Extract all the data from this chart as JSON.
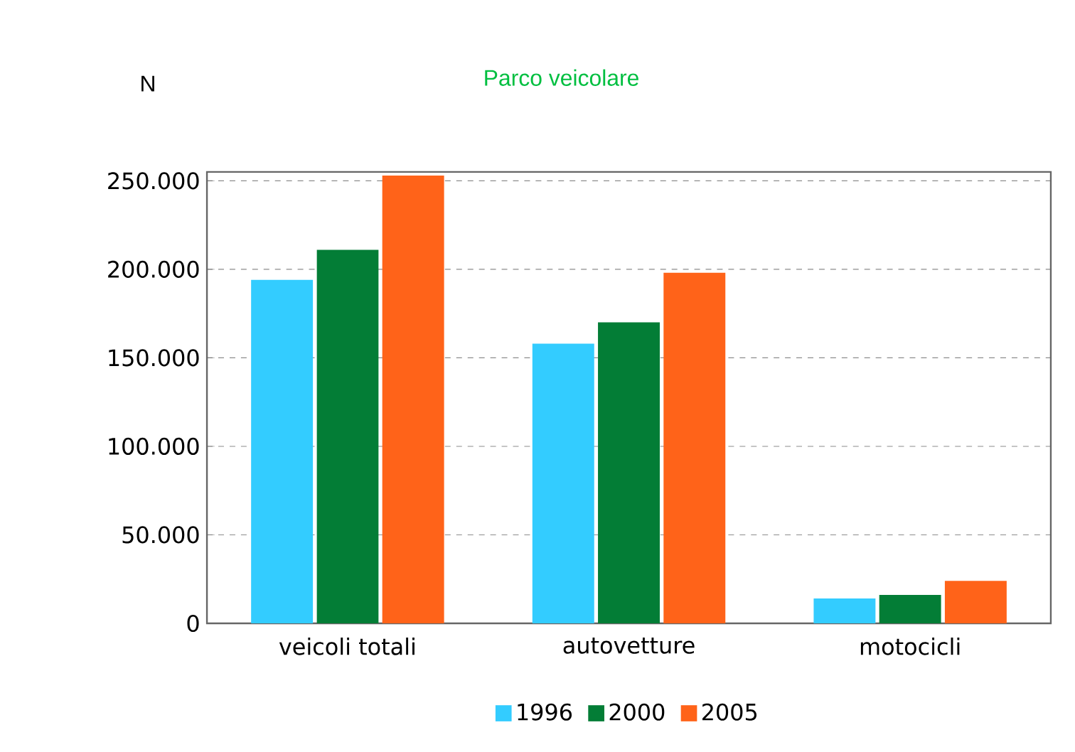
{
  "chart_data": {
    "type": "bar",
    "title": "Parco veicolare",
    "ylabel": "N",
    "categories": [
      "veicoli totali",
      "autovetture",
      "motocicli"
    ],
    "series": [
      {
        "name": "1996",
        "color": "#33ccff",
        "values": [
          194000,
          158000,
          14000
        ]
      },
      {
        "name": "2000",
        "color": "#037d36",
        "values": [
          211000,
          170000,
          16000
        ]
      },
      {
        "name": "2005",
        "color": "#ff6319",
        "values": [
          253000,
          198000,
          24000
        ]
      }
    ],
    "ylim": [
      0,
      255000
    ],
    "yticks": [
      {
        "value": 0,
        "label": "0"
      },
      {
        "value": 50000,
        "label": "50.000"
      },
      {
        "value": 100000,
        "label": "100.000"
      },
      {
        "value": 150000,
        "label": "150.000"
      },
      {
        "value": 200000,
        "label": "200.000"
      },
      {
        "value": 250000,
        "label": "250.000"
      }
    ],
    "grid": "y",
    "legend": "bottom"
  }
}
